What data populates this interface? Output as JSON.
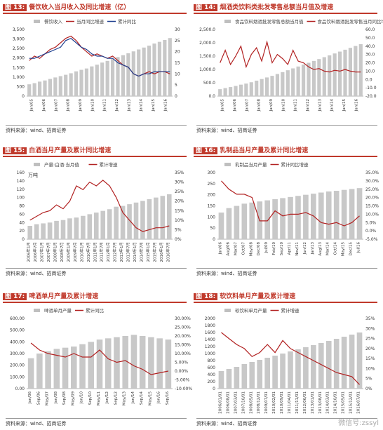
{
  "source_text": "资料来源：wind、招商证券",
  "watermark": "微信号:zssyl",
  "chart_data": [
    {
      "id": "p13",
      "type": "bar+line",
      "figure_label": "图 13:",
      "title": "餐饮收入当月收入及同比增速（亿）",
      "legend": [
        "餐饮收入",
        "当月同比增速",
        "累计同比"
      ],
      "x_ticks": [
        "Jan/05",
        "Jan/06",
        "Jan/07",
        "Jan/08",
        "Jan/09",
        "Jan/10",
        "Jan/11",
        "Jan/12",
        "Jan/13",
        "Jan/14",
        "Jan/15",
        "Jan/16"
      ],
      "y_left": {
        "min": 0,
        "max": 3500,
        "ticks": [
          "0",
          "500",
          "1,000",
          "1,500",
          "2,000",
          "2,500",
          "3,000",
          "3,500"
        ]
      },
      "y_right": {
        "min": 0,
        "max": 30,
        "ticks": [
          "0",
          "5",
          "10",
          "15",
          "20",
          "25",
          "30"
        ]
      },
      "bars": [
        620,
        680,
        760,
        820,
        900,
        980,
        1050,
        1120,
        1200,
        1300,
        1380,
        1450,
        1560,
        1650,
        1760,
        1850,
        1950,
        2050,
        2150,
        2250,
        2350,
        2450,
        2550,
        2650,
        2760,
        2850,
        2950,
        3050
      ],
      "line1": [
        16,
        18,
        17,
        19,
        21,
        22,
        24,
        26,
        27,
        25,
        22,
        20,
        18,
        19,
        18,
        17,
        18,
        16,
        14,
        13,
        10,
        9,
        10,
        11,
        10,
        11,
        11,
        10
      ],
      "line2": [
        17,
        17,
        18,
        19,
        20,
        21,
        22,
        25,
        26,
        24,
        22,
        21,
        19,
        18,
        18,
        17,
        17,
        15,
        14,
        13,
        10,
        9,
        10,
        10,
        11,
        11,
        11,
        11
      ]
    },
    {
      "id": "p14",
      "type": "bar+line",
      "figure_label": "图 14:",
      "title": "烟酒类饮料类批发零售总额当月值及增速",
      "legend": [
        "食品饮料烟酒批发零售总额当月值",
        "食品饮料烟酒批发零售当月同比增速"
      ],
      "x_ticks": [
        "Jan/05",
        "Jan/06",
        "Jan/07",
        "Jan/08",
        "Jan/09",
        "Jan/10",
        "Jan/11",
        "Jan/12",
        "Jan/13",
        "Jan/14",
        "Jan/15",
        "Jan/16"
      ],
      "y_left": {
        "min": 0,
        "max": 2500,
        "ticks": [
          "0.0",
          "500.0",
          "1,000.0",
          "1,500.0",
          "2,000.0",
          "2,500.0"
        ]
      },
      "y_right": {
        "min": -20,
        "max": 60,
        "ticks": [
          "-20.0",
          "-10.0",
          "0.0",
          "10.0",
          "20.0",
          "30.0",
          "40.0",
          "50.0",
          "60.0"
        ]
      },
      "bars": [
        260,
        300,
        340,
        380,
        430,
        470,
        520,
        580,
        640,
        700,
        760,
        830,
        900,
        970,
        1040,
        1110,
        1180,
        1250,
        1320,
        1390,
        1460,
        1530,
        1600,
        1670,
        1740,
        1810,
        1880,
        1950
      ],
      "line1": [
        20,
        35,
        18,
        28,
        40,
        15,
        30,
        38,
        22,
        45,
        20,
        30,
        25,
        18,
        35,
        22,
        20,
        15,
        12,
        13,
        10,
        9,
        11,
        10,
        12,
        10,
        9,
        9
      ]
    },
    {
      "id": "p15",
      "type": "bar+line",
      "figure_label": "图 15:",
      "title": "白酒当月产量及累计同比增速",
      "legend": [
        "产量:白酒:当月值",
        "累计增速"
      ],
      "unit_label": "万吨",
      "x_ticks": [
        "2006年1月",
        "2006年7月",
        "2007年1月",
        "2007年7月",
        "2008年1月",
        "2008年7月",
        "2009年1月",
        "2009年7月",
        "2010年1月",
        "2010年7月",
        "2011年1月",
        "2011年7月",
        "2012年1月",
        "2012年7月",
        "2013年1月",
        "2013年7月",
        "2014年1月",
        "2014年7月",
        "2015年1月",
        "2015年7月",
        "2016年1月",
        "2016年7月"
      ],
      "y_left": {
        "min": 0,
        "max": 160,
        "ticks": [
          "0",
          "20",
          "40",
          "60",
          "80",
          "100",
          "120",
          "140",
          "160"
        ]
      },
      "y_right": {
        "min": 0,
        "max": 35,
        "ticks": [
          "0%",
          "5%",
          "10%",
          "15%",
          "20%",
          "25%",
          "30%",
          "35%"
        ]
      },
      "bars": [
        32,
        36,
        38,
        40,
        44,
        46,
        50,
        52,
        56,
        60,
        64,
        68,
        72,
        78,
        80,
        84,
        88,
        92,
        96,
        100,
        104,
        108
      ],
      "line1": [
        10,
        12,
        14,
        15,
        18,
        16,
        20,
        28,
        26,
        30,
        28,
        31,
        28,
        22,
        14,
        10,
        6,
        4,
        5,
        6,
        6,
        7
      ]
    },
    {
      "id": "p16",
      "type": "bar+line",
      "figure_label": "图 16:",
      "title": "乳制品当月产量及累计同比增速",
      "legend": [
        "乳制品当月产量",
        "累计同比增速"
      ],
      "x_ticks": [
        "Jan/06",
        "Aug/06",
        "Mar/07",
        "Oct/07",
        "May/08",
        "Dec/08",
        "Jul/09",
        "Feb/10",
        "Sep/10",
        "Apr/11",
        "Nov/11",
        "Jun/12",
        "Jan/13",
        "Aug/13",
        "Mar/14",
        "Oct/14",
        "May/15",
        "Dec/15",
        "Jul/16"
      ],
      "y_left": {
        "min": 0,
        "max": 300,
        "ticks": [
          "0",
          "50",
          "100",
          "150",
          "200",
          "250",
          "300"
        ]
      },
      "y_right": {
        "min": -5,
        "max": 35,
        "ticks": [
          "-5.0%",
          "0.0%",
          "5.0%",
          "10.0%",
          "15.0%",
          "20.0%",
          "25.0%",
          "30.0%",
          "35.0%"
        ]
      },
      "bars": [
        120,
        140,
        150,
        160,
        165,
        170,
        175,
        180,
        185,
        190,
        195,
        200,
        205,
        210,
        215,
        218,
        222,
        226,
        230
      ],
      "line1": [
        30,
        25,
        22,
        22,
        20,
        6,
        6,
        12,
        9,
        10,
        10,
        11,
        9,
        5,
        4,
        5,
        3,
        5,
        9
      ]
    },
    {
      "id": "p17",
      "type": "bar+line",
      "figure_label": "图 17:",
      "title": "啤酒单月产量及累计增速",
      "legend": [
        "啤酒单月产量",
        "累计同比"
      ],
      "x_ticks": [
        "Jan/06",
        "Sep/06",
        "May/07",
        "Jan/08",
        "Sep/08",
        "May/09",
        "Jan/10",
        "Sep/10",
        "May/11",
        "Jan/12",
        "Sep/12",
        "May/13",
        "Jan/14",
        "Sep/14",
        "May/15",
        "Jan/16",
        "Sep/16"
      ],
      "y_left": {
        "min": 0,
        "max": 600,
        "ticks": [
          "0.00",
          "100.00",
          "200.00",
          "300.00",
          "400.00",
          "500.00",
          "600.00"
        ]
      },
      "y_right": {
        "min": -10,
        "max": 30,
        "ticks": [
          "-10.00%",
          "-5.00%",
          "0.00%",
          "5.00%",
          "10.00%",
          "15.00%",
          "20.00%",
          "25.00%",
          "30.00%"
        ]
      },
      "bars": [
        260,
        300,
        320,
        340,
        350,
        360,
        380,
        400,
        420,
        430,
        440,
        450,
        460,
        450,
        440,
        430,
        420
      ],
      "line1": [
        16,
        12,
        10,
        9,
        8,
        10,
        8,
        8,
        12,
        7,
        5,
        6,
        3,
        1,
        -2,
        -1,
        0
      ]
    },
    {
      "id": "p18",
      "type": "bar+line",
      "figure_label": "图 18:",
      "title": "软饮料单月产量及累计增速",
      "legend": [
        "软饮料单月产量",
        "累计增速"
      ],
      "x_ticks": [
        "2006/01/01",
        "2006/08/01",
        "2007/03/01",
        "2007/10/01",
        "2008/05/01",
        "2008/12/01",
        "2009/07/01",
        "2010/02/01",
        "2010/09/01",
        "2011/04/01",
        "2011/11/01",
        "2012/06/01",
        "2013/01/01",
        "2013/08/01",
        "2014/03/01",
        "2014/10/01",
        "2015/05/01",
        "2015/12/01",
        "2016/07/01"
      ],
      "y_left": {
        "min": 0,
        "max": 2000,
        "ticks": [
          "0",
          "200",
          "400",
          "600",
          "800",
          "1000",
          "1200",
          "1400",
          "1600",
          "1800",
          "2000"
        ]
      },
      "y_right": {
        "min": 0,
        "max": 35,
        "ticks": [
          "0%",
          "5%",
          "10%",
          "15%",
          "20%",
          "25%",
          "30%",
          "35%"
        ]
      },
      "bars": [
        500,
        560,
        620,
        700,
        760,
        820,
        880,
        940,
        1000,
        1060,
        1120,
        1180,
        1240,
        1300,
        1360,
        1420,
        1480,
        1540,
        1600
      ],
      "line1": [
        28,
        25,
        22,
        20,
        16,
        18,
        22,
        18,
        24,
        20,
        18,
        16,
        14,
        12,
        10,
        8,
        7,
        6,
        2
      ]
    }
  ]
}
